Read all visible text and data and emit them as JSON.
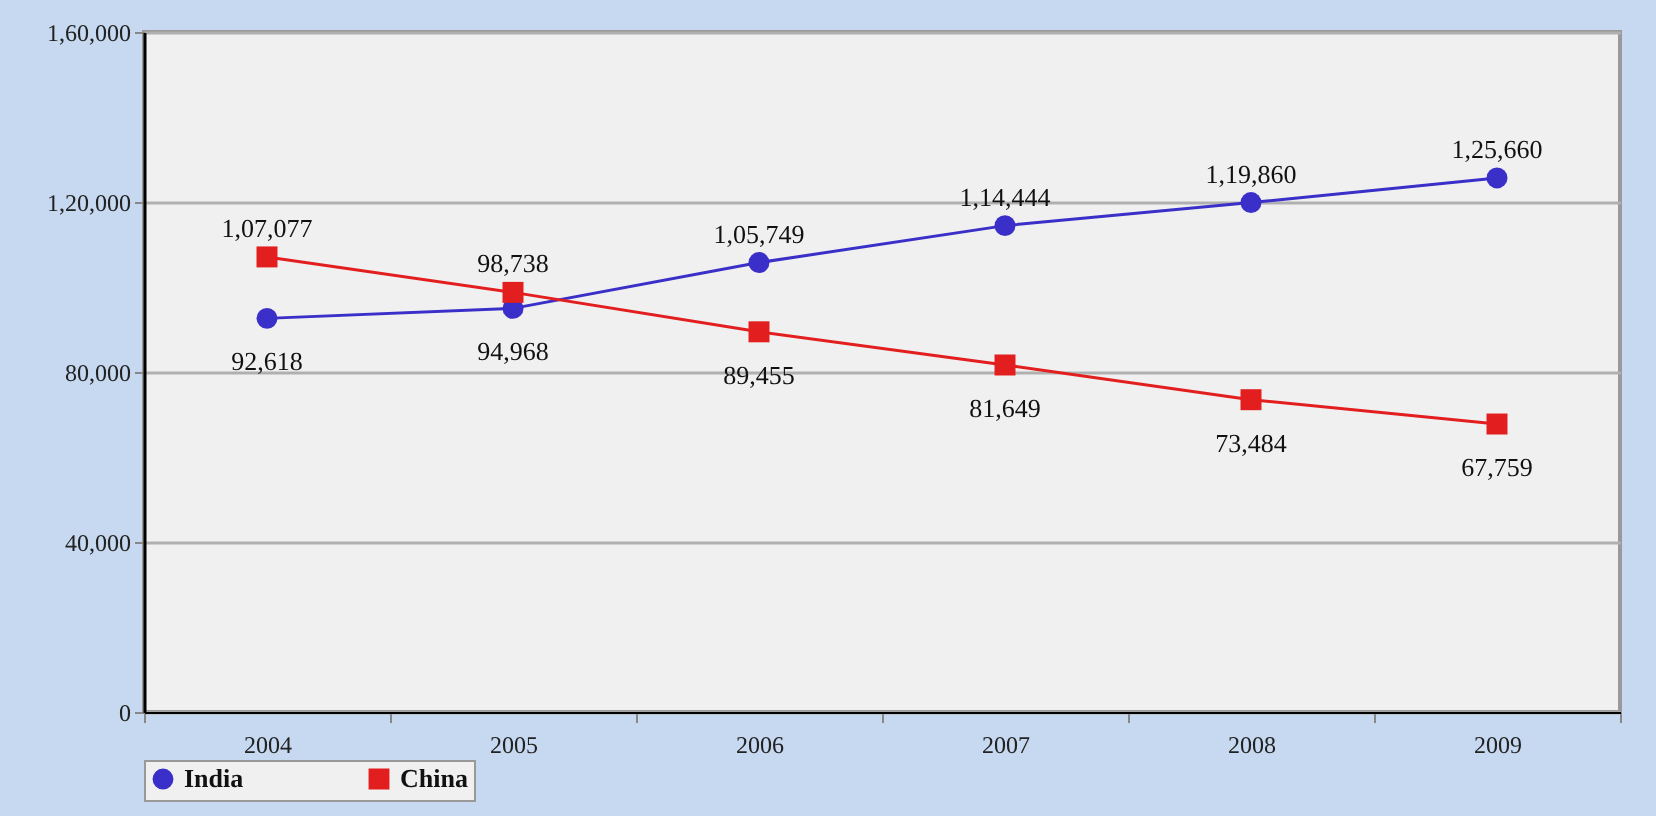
{
  "chart_data": {
    "type": "line",
    "categories": [
      "2004",
      "2005",
      "2006",
      "2007",
      "2008",
      "2009"
    ],
    "series": [
      {
        "name": "India",
        "color": "#3a2fc8",
        "marker": "circle",
        "values": [
          92618,
          94968,
          105749,
          114444,
          119860,
          125660
        ],
        "value_labels": [
          "92,618",
          "94,968",
          "1,05,749",
          "1,14,444",
          "1,19,860",
          "1,25,660"
        ]
      },
      {
        "name": "China",
        "color": "#e31e1e",
        "marker": "square",
        "values": [
          107077,
          98738,
          89455,
          81649,
          73484,
          67759
        ],
        "value_labels": [
          "1,07,077",
          "98,738",
          "89,455",
          "81,649",
          "73,484",
          "67,759"
        ]
      }
    ],
    "ylim": [
      0,
      160000
    ],
    "yticks": [
      0,
      {
        "value": 40000,
        "label": "40,000"
      },
      {
        "value": 80000,
        "label": "80,000"
      },
      {
        "value": 120000,
        "label": "1,20,000"
      },
      {
        "value": 160000,
        "label": "1,60,000"
      }
    ],
    "grid": "y",
    "legend": "bottom"
  }
}
